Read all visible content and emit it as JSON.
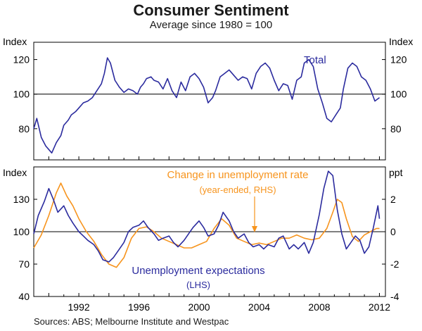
{
  "title": "Consumer Sentiment",
  "subtitle": "Average since 1980 = 100",
  "source": "Sources: ABS; Melbourne Institute and Westpac",
  "colors": {
    "total": "#2b2b9e",
    "unemp_exp": "#2b2b9e",
    "unemp_rate": "#f7941d",
    "axis": "#000000",
    "reference_line": "#000000"
  },
  "chart_data": [
    {
      "type": "line",
      "title": "Total",
      "ylabel_left": "Index",
      "ylabel_right": "Index",
      "ylim": [
        62,
        130
      ],
      "yticks_left": [
        80,
        100,
        120
      ],
      "yticks_right": [
        80,
        100,
        120
      ],
      "reference_value": 100,
      "xlim": [
        1989.0,
        2012.4
      ],
      "series": [
        {
          "name": "Total",
          "label": "Total",
          "color": "#2b2b9e",
          "x": [
            1989.0,
            1989.2,
            1989.5,
            1989.8,
            1990.0,
            1990.2,
            1990.5,
            1990.8,
            1991.0,
            1991.3,
            1991.5,
            1991.8,
            1992.0,
            1992.3,
            1992.6,
            1992.9,
            1993.2,
            1993.5,
            1993.7,
            1993.9,
            1994.1,
            1994.4,
            1994.7,
            1995.0,
            1995.3,
            1995.6,
            1995.9,
            1996.1,
            1996.3,
            1996.5,
            1996.8,
            1997.0,
            1997.3,
            1997.6,
            1997.9,
            1998.2,
            1998.5,
            1998.8,
            1999.1,
            1999.4,
            1999.7,
            2000.0,
            2000.3,
            2000.6,
            2000.9,
            2001.1,
            2001.4,
            2001.7,
            2002.0,
            2002.3,
            2002.6,
            2002.9,
            2003.2,
            2003.5,
            2003.8,
            2004.1,
            2004.4,
            2004.7,
            2005.0,
            2005.3,
            2005.6,
            2005.9,
            2006.2,
            2006.5,
            2006.8,
            2007.0,
            2007.3,
            2007.6,
            2007.9,
            2008.2,
            2008.5,
            2008.8,
            2009.1,
            2009.4,
            2009.6,
            2009.9,
            2010.2,
            2010.5,
            2010.8,
            2011.1,
            2011.4,
            2011.7,
            2012.0
          ],
          "y": [
            80,
            86,
            75,
            70,
            68,
            66,
            72,
            76,
            82,
            85,
            88,
            90,
            92,
            95,
            96,
            98,
            102,
            106,
            112,
            121,
            118,
            108,
            104,
            101,
            103,
            102,
            100,
            104,
            106,
            109,
            110,
            108,
            107,
            103,
            109,
            102,
            98,
            107,
            102,
            110,
            112,
            109,
            104,
            95,
            98,
            102,
            110,
            112,
            114,
            111,
            108,
            110,
            109,
            103,
            112,
            116,
            118,
            115,
            108,
            102,
            106,
            105,
            97,
            108,
            110,
            118,
            120,
            116,
            103,
            95,
            86,
            84,
            88,
            92,
            103,
            115,
            118,
            116,
            110,
            108,
            103,
            96,
            98
          ]
        }
      ]
    },
    {
      "type": "line",
      "ylabel_left": "Index",
      "ylabel_right": "ppt",
      "ylim_left": [
        40,
        160
      ],
      "ylim_right": [
        -4,
        4
      ],
      "yticks_left": [
        40,
        70,
        100,
        130
      ],
      "yticks_right": [
        -4,
        -2,
        0,
        2
      ],
      "reference_value": 100,
      "xlim": [
        1989.0,
        2012.4
      ],
      "xticks": [
        1992,
        1996,
        2000,
        2004,
        2008,
        2012
      ],
      "series": [
        {
          "name": "Unemployment expectations (LHS)",
          "label": "Unemployment expectations",
          "label2": "(LHS)",
          "axis": "left",
          "color": "#2b2b9e",
          "x": [
            1989.0,
            1989.3,
            1989.7,
            1990.0,
            1990.3,
            1990.6,
            1991.0,
            1991.3,
            1991.6,
            1992.0,
            1992.3,
            1992.6,
            1993.0,
            1993.3,
            1993.6,
            1994.0,
            1994.3,
            1994.6,
            1995.0,
            1995.3,
            1995.6,
            1996.0,
            1996.3,
            1996.6,
            1997.0,
            1997.3,
            1997.6,
            1998.0,
            1998.3,
            1998.6,
            1999.0,
            1999.3,
            1999.6,
            2000.0,
            2000.3,
            2000.6,
            2001.0,
            2001.3,
            2001.6,
            2002.0,
            2002.3,
            2002.6,
            2003.0,
            2003.3,
            2003.6,
            2004.0,
            2004.3,
            2004.6,
            2005.0,
            2005.3,
            2005.6,
            2006.0,
            2006.3,
            2006.6,
            2007.0,
            2007.3,
            2007.6,
            2008.0,
            2008.3,
            2008.6,
            2008.9,
            2009.2,
            2009.5,
            2009.8,
            2010.1,
            2010.4,
            2010.7,
            2011.0,
            2011.3,
            2011.6,
            2011.9,
            2012.0
          ],
          "y": [
            98,
            115,
            128,
            140,
            130,
            118,
            124,
            115,
            108,
            100,
            96,
            92,
            88,
            82,
            74,
            72,
            76,
            82,
            90,
            100,
            104,
            106,
            110,
            104,
            98,
            92,
            94,
            96,
            90,
            86,
            92,
            98,
            104,
            110,
            104,
            96,
            98,
            106,
            118,
            110,
            100,
            94,
            98,
            90,
            86,
            88,
            84,
            88,
            86,
            94,
            96,
            84,
            88,
            84,
            90,
            80,
            90,
            116,
            140,
            156,
            152,
            120,
            98,
            84,
            90,
            96,
            92,
            80,
            86,
            104,
            124,
            112
          ]
        },
        {
          "name": "Change in unemployment rate (year-ended, RHS)",
          "label": "Change in unemployment rate",
          "label2": "(year-ended, RHS)",
          "axis": "right",
          "color": "#f7941d",
          "x": [
            1989.0,
            1989.5,
            1990.0,
            1990.5,
            1990.8,
            1991.2,
            1991.6,
            1992.0,
            1992.5,
            1993.0,
            1993.5,
            1994.0,
            1994.5,
            1995.0,
            1995.5,
            1996.0,
            1996.5,
            1997.0,
            1997.5,
            1998.0,
            1998.5,
            1999.0,
            1999.5,
            2000.0,
            2000.5,
            2001.0,
            2001.5,
            2002.0,
            2002.5,
            2003.0,
            2003.5,
            2004.0,
            2004.5,
            2005.0,
            2005.5,
            2006.0,
            2006.5,
            2007.0,
            2007.5,
            2008.0,
            2008.5,
            2008.9,
            2009.2,
            2009.5,
            2009.8,
            2010.2,
            2010.6,
            2011.0,
            2011.4,
            2011.8,
            2012.0
          ],
          "y": [
            -1.0,
            -0.2,
            1.0,
            2.4,
            3.0,
            2.2,
            1.6,
            0.8,
            0.0,
            -0.6,
            -1.4,
            -2.0,
            -2.2,
            -1.6,
            -0.4,
            0.2,
            0.3,
            0.0,
            -0.4,
            -0.6,
            -0.8,
            -1.0,
            -1.0,
            -0.8,
            -0.6,
            0.2,
            0.8,
            0.4,
            -0.4,
            -0.6,
            -0.8,
            -0.7,
            -0.8,
            -0.6,
            -0.4,
            -0.4,
            -0.2,
            -0.4,
            -0.5,
            -0.4,
            0.2,
            1.2,
            2.0,
            1.8,
            0.8,
            -0.3,
            -0.6,
            -0.2,
            0.0,
            0.2,
            0.2
          ]
        }
      ]
    }
  ]
}
